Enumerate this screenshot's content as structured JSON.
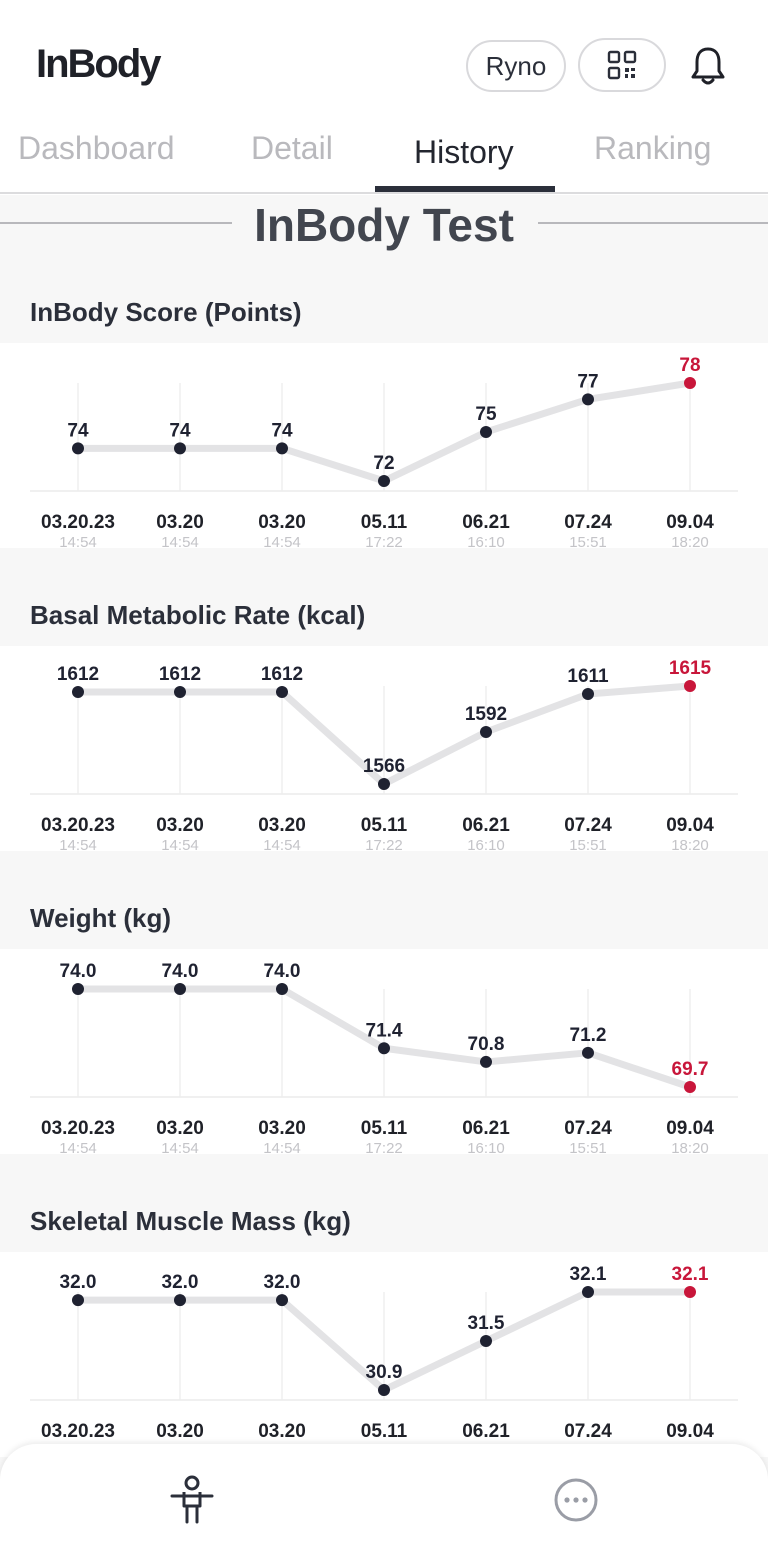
{
  "header": {
    "logo": "InBody",
    "user_name": "Ryno",
    "qr_icon": "qr-code-icon",
    "bell_icon": "bell-icon"
  },
  "tabs": [
    {
      "label": "Dashboard",
      "active": false
    },
    {
      "label": "Detail",
      "active": false
    },
    {
      "label": "History",
      "active": true
    },
    {
      "label": "Ranking",
      "active": false
    }
  ],
  "section_title": "InBody Test",
  "colors": {
    "accent": "#c8163a",
    "point": "#1f2231",
    "line": "#e3e3e5",
    "time_text": "#c4c4c8"
  },
  "bottom_nav": {
    "left_icon": "body-figure-icon",
    "right_icon": "more-icon"
  },
  "chart_data": [
    {
      "type": "line",
      "title": "InBody Score (Points)",
      "x": [
        "03.20.23",
        "03.20",
        "03.20",
        "05.11",
        "06.21",
        "07.24",
        "09.04"
      ],
      "times": [
        "14:54",
        "14:54",
        "14:54",
        "17:22",
        "16:10",
        "15:51",
        "18:20"
      ],
      "series": [
        {
          "values": [
            74,
            74,
            74,
            72,
            75,
            77,
            78
          ]
        }
      ],
      "labels": [
        "74",
        "74",
        "74",
        "72",
        "75",
        "77",
        "78"
      ],
      "highlight_last": true
    },
    {
      "type": "line",
      "title": "Basal Metabolic Rate (kcal)",
      "x": [
        "03.20.23",
        "03.20",
        "03.20",
        "05.11",
        "06.21",
        "07.24",
        "09.04"
      ],
      "times": [
        "14:54",
        "14:54",
        "14:54",
        "17:22",
        "16:10",
        "15:51",
        "18:20"
      ],
      "series": [
        {
          "values": [
            1612,
            1612,
            1612,
            1566,
            1592,
            1611,
            1615
          ]
        }
      ],
      "labels": [
        "1612",
        "1612",
        "1612",
        "1566",
        "1592",
        "1611",
        "1615"
      ],
      "highlight_last": true
    },
    {
      "type": "line",
      "title": "Weight (kg)",
      "x": [
        "03.20.23",
        "03.20",
        "03.20",
        "05.11",
        "06.21",
        "07.24",
        "09.04"
      ],
      "times": [
        "14:54",
        "14:54",
        "14:54",
        "17:22",
        "16:10",
        "15:51",
        "18:20"
      ],
      "series": [
        {
          "values": [
            74.0,
            74.0,
            74.0,
            71.4,
            70.8,
            71.2,
            69.7
          ]
        }
      ],
      "labels": [
        "74.0",
        "74.0",
        "74.0",
        "71.4",
        "70.8",
        "71.2",
        "69.7"
      ],
      "highlight_last": true
    },
    {
      "type": "line",
      "title": "Skeletal Muscle Mass (kg)",
      "x": [
        "03.20.23",
        "03.20",
        "03.20",
        "05.11",
        "06.21",
        "07.24",
        "09.04"
      ],
      "times": [],
      "series": [
        {
          "values": [
            32.0,
            32.0,
            32.0,
            30.9,
            31.5,
            32.1,
            32.1
          ]
        }
      ],
      "labels": [
        "32.0",
        "32.0",
        "32.0",
        "30.9",
        "31.5",
        "32.1",
        "32.1"
      ],
      "highlight_last": true
    }
  ]
}
